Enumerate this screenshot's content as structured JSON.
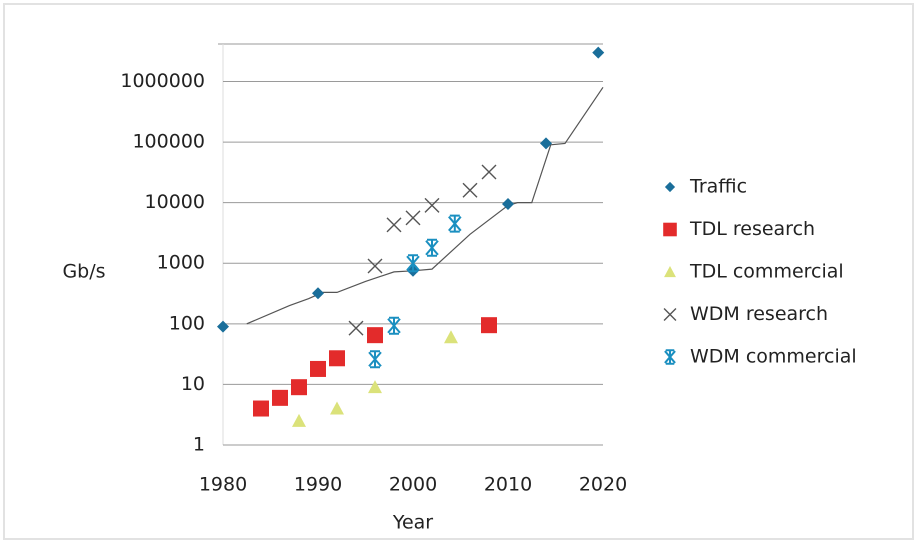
{
  "chart_data": {
    "type": "scatter",
    "x_label": "Year",
    "y_label": "Gb/s",
    "xlim": [
      1980,
      2020
    ],
    "xticks": [
      1980,
      1990,
      2000,
      2010,
      2020
    ],
    "ylim": [
      1,
      4000000
    ],
    "yticks": [
      1,
      10,
      100,
      1000,
      10000,
      100000,
      1000000
    ],
    "log_y": true,
    "grid": true,
    "legend": "right",
    "trend_line": {
      "color": "#555555",
      "x": [
        1982.5,
        1987,
        1989,
        1990.5,
        1992,
        1995,
        1998,
        2000,
        2002,
        2006,
        2010,
        2011,
        2012.5,
        2014.5,
        2016,
        2020
      ],
      "values": [
        100,
        200,
        260,
        330,
        330,
        500,
        720,
        750,
        800,
        3000,
        9000,
        10000,
        10000,
        90000,
        95000,
        800000
      ]
    },
    "series": [
      {
        "name": "Traffic",
        "color": "#1a6e9a",
        "marker": "diamond",
        "x": [
          1980,
          1990,
          2000,
          2010,
          2014,
          2019.5
        ],
        "values": [
          90,
          320,
          750,
          9500,
          95000,
          3000000
        ]
      },
      {
        "name": "TDL research",
        "color": "#e32b2b",
        "marker": "square",
        "x": [
          1984,
          1986,
          1988,
          1990,
          1992,
          1996,
          2008
        ],
        "values": [
          4,
          6,
          9,
          18,
          27,
          65,
          95
        ]
      },
      {
        "name": "TDL commercial",
        "color": "#dbe27a",
        "marker": "triangle",
        "x": [
          1988,
          1992,
          1996,
          2004
        ],
        "values": [
          2.5,
          4,
          9,
          60
        ]
      },
      {
        "name": "WDM research",
        "color": "#555555",
        "marker": "x",
        "x": [
          1994,
          1996,
          1998,
          2000,
          2002,
          2006,
          2008
        ],
        "values": [
          85,
          900,
          4300,
          5600,
          9000,
          16000,
          32000
        ]
      },
      {
        "name": "WDM commercial",
        "color": "#1a8fc0",
        "marker": "asterisk",
        "x": [
          1996,
          1998,
          2000,
          2002,
          2004.4
        ],
        "values": [
          26,
          93,
          1000,
          1800,
          4500
        ]
      }
    ]
  }
}
